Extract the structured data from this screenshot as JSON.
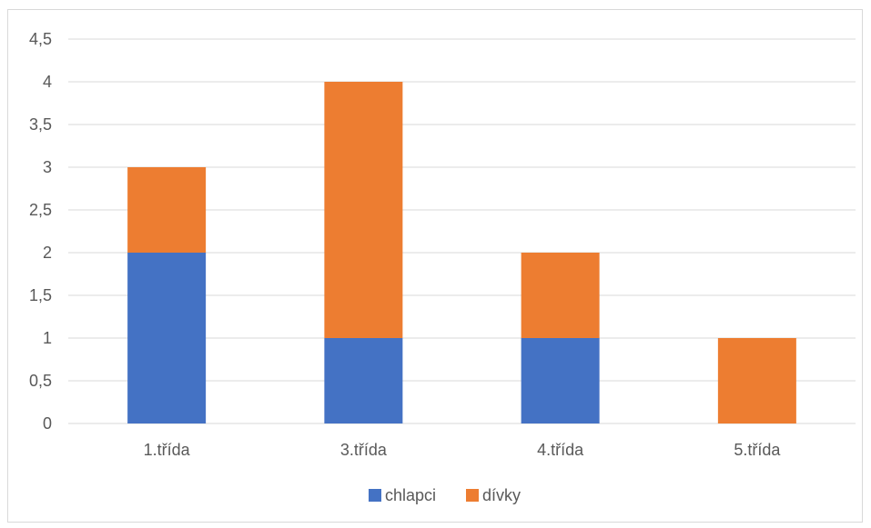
{
  "chart_data": {
    "type": "bar",
    "stacked": true,
    "categories": [
      "1.třída",
      "3.třída",
      "4.třída",
      "5.třída"
    ],
    "series": [
      {
        "name": "chlapci",
        "values": [
          2,
          1,
          1,
          0
        ],
        "color": "#4472c4"
      },
      {
        "name": "dívky",
        "values": [
          1,
          3,
          1,
          1
        ],
        "color": "#ed7d31"
      }
    ],
    "ylim": [
      0,
      4.5
    ],
    "yticks": [
      "0",
      "0,5",
      "1",
      "1,5",
      "2",
      "2,5",
      "3",
      "3,5",
      "4",
      "4,5"
    ],
    "grid": true,
    "legend_position": "bottom"
  }
}
